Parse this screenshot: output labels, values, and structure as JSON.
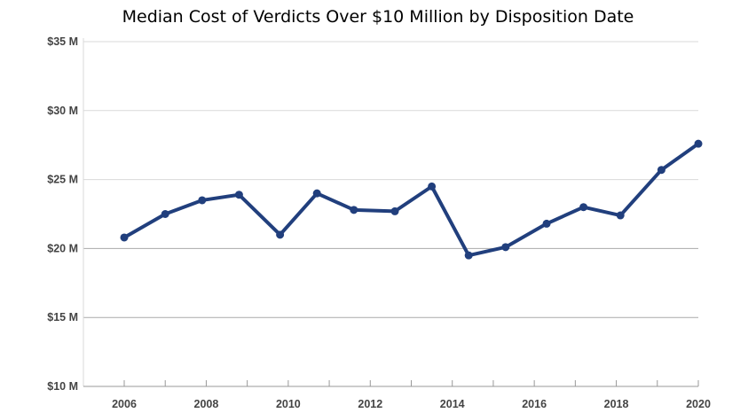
{
  "chart_data": {
    "type": "line",
    "title": "Median Cost of Verdicts Over $10 Million by Disposition Date",
    "xlabel": "",
    "ylabel": "",
    "ylim": [
      10,
      35
    ],
    "y_ticks": [
      10,
      15,
      20,
      25,
      30,
      35
    ],
    "y_tick_labels": [
      "$10 M",
      "$15 M",
      "$20 M",
      "$25 M",
      "$30 M",
      "$35 M"
    ],
    "xlim": [
      2005,
      2020
    ],
    "x_tick_labels": [
      "2006",
      "2008",
      "2010",
      "2012",
      "2014",
      "2016",
      "2018",
      "2020"
    ],
    "x_tick_values": [
      2006,
      2008,
      2010,
      2012,
      2014,
      2016,
      2018,
      2020
    ],
    "x_minor_ticks": [
      2007,
      2009,
      2011,
      2013,
      2015,
      2017,
      2019
    ],
    "grid": true,
    "legend": "none",
    "series": [
      {
        "color": "#213f7d",
        "points": [
          {
            "x": 2006.0,
            "y": 20.8
          },
          {
            "x": 2007.0,
            "y": 22.5
          },
          {
            "x": 2007.9,
            "y": 23.5
          },
          {
            "x": 2008.8,
            "y": 23.9
          },
          {
            "x": 2009.8,
            "y": 21.0
          },
          {
            "x": 2010.7,
            "y": 24.0
          },
          {
            "x": 2011.6,
            "y": 22.8
          },
          {
            "x": 2012.6,
            "y": 22.7
          },
          {
            "x": 2013.5,
            "y": 24.5
          },
          {
            "x": 2014.4,
            "y": 19.5
          },
          {
            "x": 2015.3,
            "y": 20.1
          },
          {
            "x": 2016.3,
            "y": 21.8
          },
          {
            "x": 2017.2,
            "y": 23.0
          },
          {
            "x": 2018.1,
            "y": 22.4
          },
          {
            "x": 2019.1,
            "y": 25.7
          },
          {
            "x": 2020.0,
            "y": 27.6
          }
        ]
      }
    ]
  },
  "colors": {
    "line": "#213f7d",
    "grid_light": "#d9d9d9",
    "grid_dark": "#aaaaaa",
    "axis": "#999999",
    "tick_label": "#444444"
  }
}
